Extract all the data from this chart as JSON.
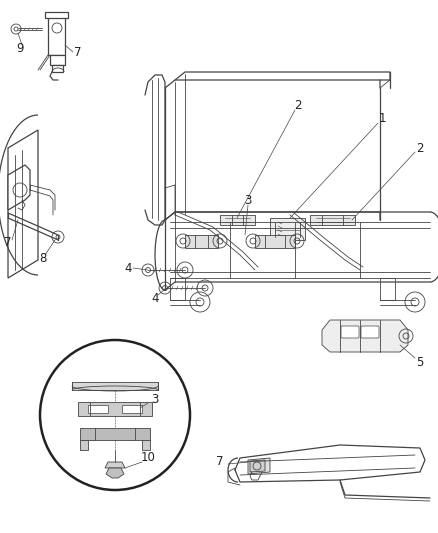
{
  "bg_color": "#ffffff",
  "line_color": "#444444",
  "label_color": "#222222",
  "label_fontsize": 8.5,
  "fig_width": 4.39,
  "fig_height": 5.33,
  "dpi": 100
}
